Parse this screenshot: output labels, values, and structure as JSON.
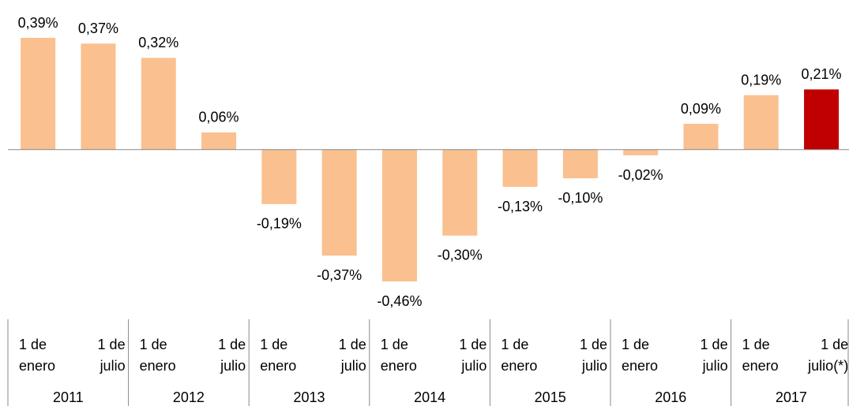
{
  "chart_data": {
    "type": "bar",
    "categories": [
      [
        "1 de",
        "enero"
      ],
      [
        "1 de",
        "julio"
      ],
      [
        "1 de",
        "enero"
      ],
      [
        "1 de",
        "julio"
      ],
      [
        "1 de",
        "enero"
      ],
      [
        "1 de",
        "julio"
      ],
      [
        "1 de",
        "enero"
      ],
      [
        "1 de",
        "julio"
      ],
      [
        "1 de",
        "enero"
      ],
      [
        "1 de",
        "julio"
      ],
      [
        "1 de",
        "enero"
      ],
      [
        "1 de",
        "julio"
      ],
      [
        "1 de",
        "enero"
      ],
      [
        "1 de",
        "julio(*)"
      ]
    ],
    "groups": [
      "2011",
      "2012",
      "2013",
      "2014",
      "2015",
      "2016",
      "2017"
    ],
    "values": [
      0.39,
      0.37,
      0.32,
      0.06,
      -0.19,
      -0.37,
      -0.46,
      -0.3,
      -0.13,
      -0.1,
      -0.02,
      0.09,
      0.19,
      0.21
    ],
    "value_labels": [
      "0,39%",
      "0,37%",
      "0,32%",
      "0,06%",
      "-0,19%",
      "-0,37%",
      "-0,46%",
      "-0,30%",
      "-0,13%",
      "-0,10%",
      "-0,02%",
      "0,09%",
      "0,19%",
      "0,21%"
    ],
    "colors": [
      "#fac090",
      "#fac090",
      "#fac090",
      "#fac090",
      "#fac090",
      "#fac090",
      "#fac090",
      "#fac090",
      "#fac090",
      "#fac090",
      "#fac090",
      "#fac090",
      "#fac090",
      "#c00000"
    ]
  }
}
